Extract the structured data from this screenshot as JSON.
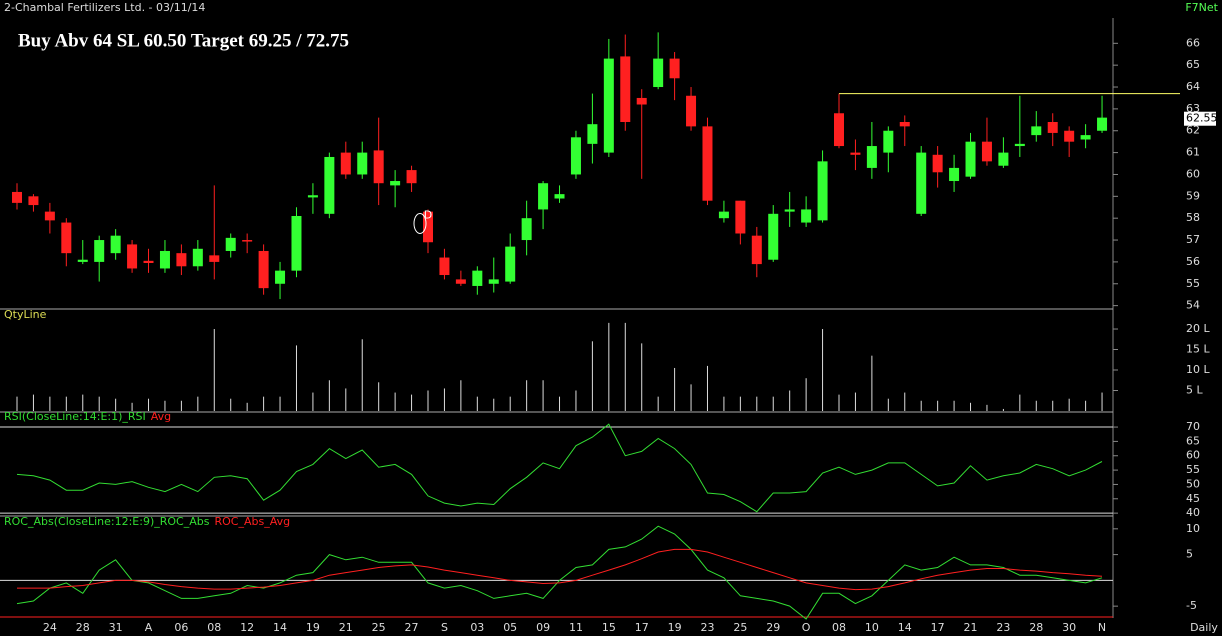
{
  "header": {
    "title": "2-Chambal Fertilizers Ltd. - 03/11/14",
    "brand": "F7Net",
    "period": "Daily"
  },
  "chart_data": [
    {
      "type": "candlestick",
      "title": "Buy Abv 64 SL 60.50 Target 69.25 / 72.75",
      "up_color": "#33ff33",
      "down_color": "#ff2020",
      "open": [
        59.2,
        59.0,
        58.3,
        57.8,
        56.0,
        56.0,
        56.4,
        56.8,
        56.05,
        55.7,
        56.4,
        55.8,
        56.3,
        56.5,
        57.0,
        56.5,
        55.0,
        55.6,
        58.95,
        58.2,
        61.0,
        60.0,
        61.1,
        59.5,
        60.2,
        58.3,
        56.2,
        55.2,
        54.9,
        55.0,
        55.1,
        57.0,
        58.4,
        58.9,
        60.0,
        61.4,
        61.0,
        65.4,
        63.5,
        64.0,
        65.3,
        63.6,
        62.2,
        58.0,
        58.8,
        57.2,
        56.1,
        58.3,
        57.8,
        57.9,
        62.8,
        61.0,
        60.3,
        61.0,
        62.4,
        58.2,
        60.9,
        59.7,
        59.9,
        61.5,
        60.4,
        61.3,
        61.8,
        62.4,
        62.0,
        61.6,
        62.0
      ],
      "high": [
        59.6,
        59.1,
        58.7,
        58.0,
        57.0,
        57.2,
        57.5,
        57.0,
        56.6,
        57.0,
        56.8,
        57.0,
        59.5,
        57.3,
        57.3,
        56.8,
        56.0,
        58.5,
        59.6,
        61.0,
        61.5,
        61.5,
        62.6,
        60.2,
        60.4,
        58.4,
        56.6,
        55.6,
        55.8,
        56.2,
        57.3,
        58.8,
        59.7,
        59.5,
        62.0,
        63.7,
        66.2,
        66.4,
        63.9,
        66.5,
        65.6,
        64.0,
        62.6,
        58.8,
        58.8,
        57.6,
        58.6,
        59.2,
        59.0,
        61.1,
        63.7,
        61.6,
        62.4,
        62.2,
        62.7,
        61.3,
        61.3,
        60.9,
        61.9,
        62.6,
        61.7,
        63.6,
        62.9,
        62.8,
        62.2,
        62.3,
        63.6
      ],
      "low": [
        58.4,
        58.3,
        57.3,
        55.8,
        55.9,
        55.1,
        56.1,
        55.5,
        55.5,
        55.5,
        55.4,
        55.6,
        55.2,
        56.2,
        56.4,
        54.5,
        54.3,
        55.3,
        58.2,
        58.0,
        59.8,
        59.8,
        58.6,
        58.5,
        59.2,
        56.4,
        55.2,
        54.9,
        54.5,
        54.6,
        55.0,
        56.3,
        57.5,
        58.7,
        59.8,
        60.5,
        60.8,
        62.0,
        59.8,
        63.9,
        63.4,
        62.0,
        58.6,
        57.8,
        56.8,
        55.3,
        56.0,
        57.6,
        57.6,
        57.8,
        61.2,
        60.2,
        59.8,
        60.1,
        61.3,
        58.1,
        59.4,
        59.2,
        59.8,
        60.4,
        60.3,
        60.8,
        61.5,
        61.3,
        60.8,
        61.2,
        61.9
      ],
      "close": [
        58.7,
        58.6,
        57.9,
        56.4,
        56.1,
        57.0,
        57.2,
        55.7,
        55.95,
        56.5,
        55.8,
        56.6,
        56.0,
        57.1,
        56.95,
        54.8,
        55.6,
        58.1,
        59.05,
        60.8,
        60.0,
        61.0,
        59.6,
        59.7,
        59.6,
        56.9,
        55.4,
        55.0,
        55.6,
        55.2,
        56.7,
        58.0,
        59.6,
        59.1,
        61.7,
        62.3,
        65.3,
        62.4,
        63.2,
        65.3,
        64.4,
        62.2,
        58.8,
        58.3,
        57.3,
        55.9,
        58.2,
        58.4,
        58.4,
        60.6,
        61.3,
        60.9,
        61.3,
        62.0,
        62.2,
        61.0,
        60.1,
        60.3,
        61.5,
        60.6,
        61.0,
        61.4,
        62.2,
        61.9,
        61.5,
        61.8,
        62.6
      ],
      "ylim": [
        53.8,
        66.7
      ],
      "yticks": [
        54,
        55,
        56,
        57,
        58,
        59,
        60,
        61,
        62,
        63,
        64,
        65,
        66
      ],
      "trendline": 63.7,
      "last": 62.55,
      "marker": {
        "text": "D",
        "index": 25
      }
    },
    {
      "type": "bar",
      "title": "QtyLine",
      "color": "#dddddd",
      "values": [
        3.5,
        4,
        3.5,
        3.5,
        4,
        3.5,
        3,
        2,
        3,
        2.5,
        2.5,
        3.5,
        20,
        3,
        2,
        3.5,
        3.5,
        16,
        4.5,
        7.5,
        5.5,
        17.5,
        7,
        4.5,
        4,
        5,
        5.5,
        7.5,
        3.5,
        3,
        3.5,
        7.5,
        7.5,
        3.5,
        5,
        17,
        21.5,
        21.5,
        16.5,
        3.5,
        10.5,
        6.5,
        11,
        3.5,
        3.5,
        3.5,
        3.5,
        5,
        8,
        20,
        4,
        4.5,
        13.5,
        3,
        4.5,
        2.5,
        2.5,
        2.5,
        2,
        1.5,
        0.5,
        4,
        2.5,
        2.5,
        3,
        2.5,
        4.5
      ],
      "ylim": [
        0,
        22.2
      ],
      "yticks": [
        {
          "value": 5,
          "label": "5 L"
        },
        {
          "value": 10,
          "label": "10 L"
        },
        {
          "value": 15,
          "label": "15 L"
        },
        {
          "value": 20,
          "label": "20 L"
        }
      ]
    },
    {
      "type": "line",
      "legend_note": {
        "text": "Avg",
        "color": "#ff2020"
      },
      "series": [
        {
          "name": "RSI(CloseLine:14:E:1)_RSI",
          "color": "#33dd33",
          "values": [
            53.5,
            53,
            51.5,
            48,
            48,
            50.5,
            50,
            51,
            49,
            47.5,
            50,
            47.5,
            52.5,
            53,
            52,
            44.5,
            48,
            54.5,
            57,
            62.5,
            59,
            62,
            56,
            57,
            53.5,
            46,
            43.5,
            42.5,
            43.5,
            43,
            48.5,
            52.5,
            57.5,
            55.5,
            63.5,
            66.5,
            71,
            60,
            61.5,
            66,
            62.5,
            57,
            47,
            46.5,
            44,
            40.5,
            47,
            47,
            47.5,
            54,
            56,
            53.5,
            55,
            57.5,
            57.5,
            53.5,
            49.5,
            50.5,
            56.5,
            51.5,
            53,
            54,
            57,
            55.5,
            53,
            55,
            58
          ]
        }
      ],
      "ylim": [
        39,
        74.9
      ],
      "yticks": [
        40,
        45,
        50,
        55,
        60,
        65,
        70
      ],
      "levels": [
        70,
        40
      ]
    },
    {
      "type": "line",
      "series": [
        {
          "name": "ROC_Abs(CloseLine:12:E:9)_ROC_Abs",
          "color": "#33dd33",
          "values": [
            -4.5,
            -4,
            -1.5,
            -0.5,
            -2.5,
            2,
            4,
            0,
            -0.5,
            -2,
            -3.5,
            -3.5,
            -3,
            -2.5,
            -1,
            -1.5,
            -0.5,
            1,
            1.5,
            5,
            4,
            4.5,
            3.5,
            3.5,
            3.5,
            -0.5,
            -1.5,
            -1,
            -2,
            -3.5,
            -3,
            -2.5,
            -3.5,
            0,
            2.5,
            3,
            6,
            6.5,
            8,
            10.5,
            9,
            6,
            2,
            0.5,
            -3,
            -3.5,
            -4,
            -5,
            -7.5,
            -2.5,
            -2.5,
            -4.5,
            -3,
            0,
            3,
            2,
            2.5,
            4.5,
            3,
            3,
            2.5,
            1,
            1,
            0.5,
            0,
            -0.5,
            0.5
          ]
        },
        {
          "name": "ROC_Abs_Avg",
          "color": "#ff2020",
          "values": [
            -1.5,
            -1.5,
            -1.5,
            -1.2,
            -1,
            -0.5,
            0,
            0,
            -0.3,
            -0.8,
            -1.2,
            -1.5,
            -1.7,
            -1.7,
            -1.5,
            -1.3,
            -1,
            -0.5,
            0,
            1,
            1.5,
            2,
            2.5,
            2.8,
            3,
            2.6,
            2,
            1.5,
            1,
            0.5,
            0,
            -0.3,
            -0.6,
            -0.5,
            0,
            1,
            2,
            3,
            4.2,
            5.5,
            6,
            6,
            5.5,
            4.5,
            3.5,
            2.5,
            1.5,
            0.5,
            -0.5,
            -1,
            -1.5,
            -1.8,
            -1.7,
            -1.2,
            -0.5,
            0.3,
            1,
            1.5,
            2,
            2.3,
            2.3,
            2,
            1.8,
            1.5,
            1.3,
            1,
            0.8
          ]
        }
      ],
      "ylim": [
        -7.3,
        12.1
      ],
      "yticks": [
        -5,
        5,
        10
      ],
      "levels": [
        0
      ],
      "categories": [
        null,
        null,
        "24",
        null,
        "28",
        null,
        "31",
        null,
        "A",
        null,
        "06",
        null,
        "08",
        null,
        "12",
        null,
        "14",
        null,
        "19",
        null,
        "21",
        null,
        "25",
        null,
        "27",
        null,
        "S",
        null,
        "03",
        null,
        "05",
        null,
        "09",
        null,
        "11",
        null,
        "15",
        null,
        "17",
        null,
        "19",
        null,
        "23",
        null,
        "25",
        null,
        "29",
        null,
        "O",
        null,
        "08",
        null,
        "10",
        null,
        "14",
        null,
        "17",
        null,
        "21",
        null,
        "23",
        null,
        "28",
        null,
        "30",
        null,
        "N"
      ]
    }
  ]
}
